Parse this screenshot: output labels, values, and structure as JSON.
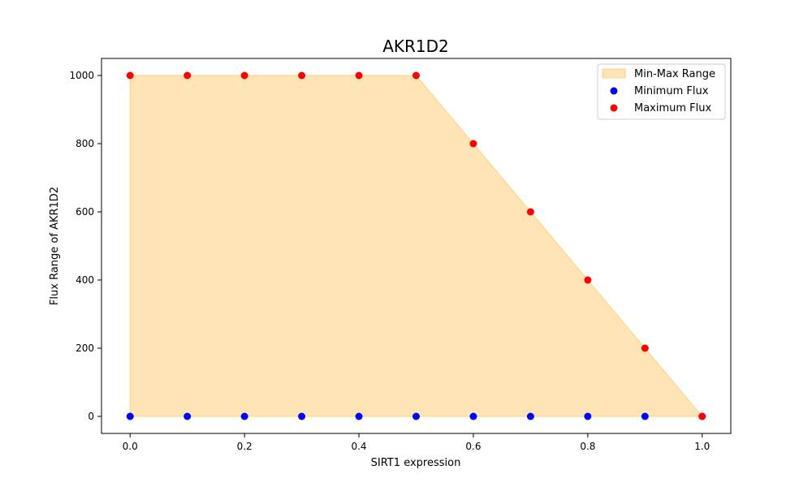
{
  "chart_data": {
    "type": "area",
    "title": "AKR1D2",
    "xlabel": "SIRT1 expression",
    "ylabel": "Flux Range of AKR1D2",
    "xlim": [
      -0.05,
      1.05
    ],
    "ylim": [
      -50,
      1050
    ],
    "x_ticks": [
      "0.0",
      "0.2",
      "0.4",
      "0.6",
      "0.8",
      "1.0"
    ],
    "y_ticks": [
      "0",
      "200",
      "400",
      "600",
      "800",
      "1000"
    ],
    "grid": false,
    "legend_position": "top-right",
    "x": [
      0.0,
      0.1,
      0.2,
      0.3,
      0.4,
      0.5,
      0.6,
      0.7,
      0.8,
      0.9,
      1.0
    ],
    "series": [
      {
        "name": "Min-Max Range",
        "kind": "fill",
        "color": "#FFE4B5",
        "edge_color": "#FFD27F"
      },
      {
        "name": "Minimum Flux",
        "kind": "scatter",
        "color": "#0000FF",
        "values": [
          0,
          0,
          0,
          0,
          0,
          0,
          0,
          0,
          0,
          0,
          0
        ]
      },
      {
        "name": "Maximum Flux",
        "kind": "scatter",
        "color": "#FF0000",
        "values": [
          1000,
          1000,
          1000,
          1000,
          1000,
          1000,
          800,
          600,
          400,
          200,
          0
        ]
      }
    ]
  }
}
